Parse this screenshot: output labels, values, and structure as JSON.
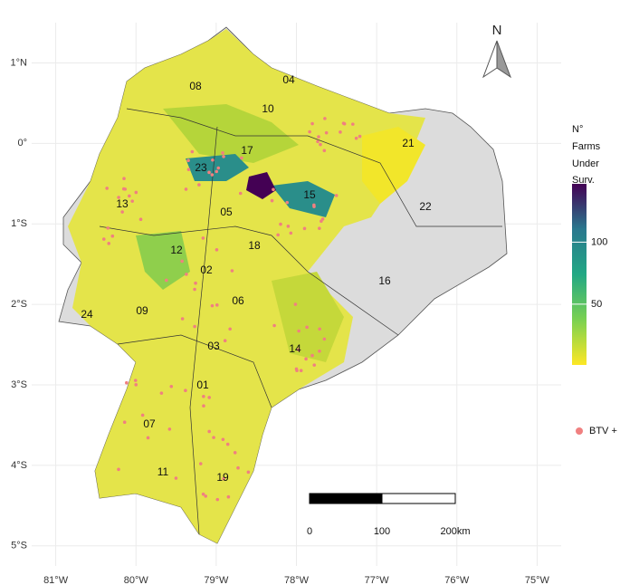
{
  "map": {
    "type": "map",
    "xlim": [
      -81.3,
      -74.7
    ],
    "ylim": [
      -5.25,
      1.5
    ],
    "xticks": [
      {
        "value": -81,
        "label": "81°W"
      },
      {
        "value": -80,
        "label": "80°W"
      },
      {
        "value": -79,
        "label": "79°W"
      },
      {
        "value": -78,
        "label": "78°W"
      },
      {
        "value": -77,
        "label": "77°W"
      },
      {
        "value": -76,
        "label": "76°W"
      },
      {
        "value": -75,
        "label": "75°W"
      }
    ],
    "yticks": [
      {
        "value": 1,
        "label": "1°N"
      },
      {
        "value": 0,
        "label": "0°"
      },
      {
        "value": -1,
        "label": "1°S"
      },
      {
        "value": -2,
        "label": "2°S"
      },
      {
        "value": -3,
        "label": "3°S"
      },
      {
        "value": -4,
        "label": "4°S"
      },
      {
        "value": -5,
        "label": "5°S"
      }
    ],
    "grid": true,
    "regions": [
      "08",
      "04",
      "10",
      "21",
      "17",
      "23",
      "15",
      "13",
      "22",
      "05",
      "18",
      "12",
      "02",
      "16",
      "06",
      "24",
      "09",
      "14",
      "03",
      "01",
      "07",
      "11",
      "19"
    ],
    "legend": {
      "title": [
        "N°",
        "Farms",
        "Under",
        "Surv."
      ],
      "colorbar": {
        "lim": [
          1,
          147
        ],
        "ticks": [
          50,
          100
        ]
      },
      "points_label": "BTV +",
      "points_color": "#f08080"
    },
    "north": "N",
    "scale_bar": [
      "0",
      "100",
      "200km"
    ]
  }
}
